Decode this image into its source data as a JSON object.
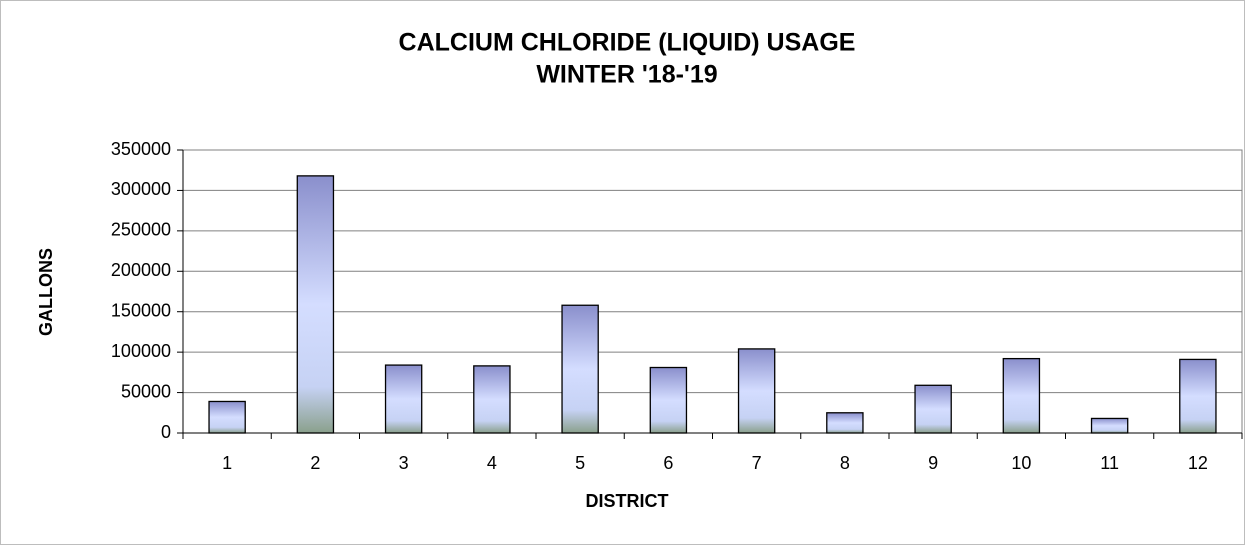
{
  "chart_data": {
    "type": "bar",
    "title": [
      "CALCIUM CHLORIDE (LIQUID) USAGE",
      "WINTER '18-'19"
    ],
    "x_label": "DISTRICT",
    "y_label": "GALLONS",
    "categories": [
      "1",
      "2",
      "3",
      "4",
      "5",
      "6",
      "7",
      "8",
      "9",
      "10",
      "11",
      "12"
    ],
    "values": [
      39000,
      318000,
      84000,
      83000,
      158000,
      81000,
      104000,
      25000,
      59000,
      92000,
      18000,
      91000
    ],
    "color": "#8a8fcc",
    "ylim": [
      0,
      350000
    ],
    "yticks": [
      0,
      50000,
      100000,
      150000,
      200000,
      250000,
      300000,
      350000
    ],
    "grid": true
  }
}
